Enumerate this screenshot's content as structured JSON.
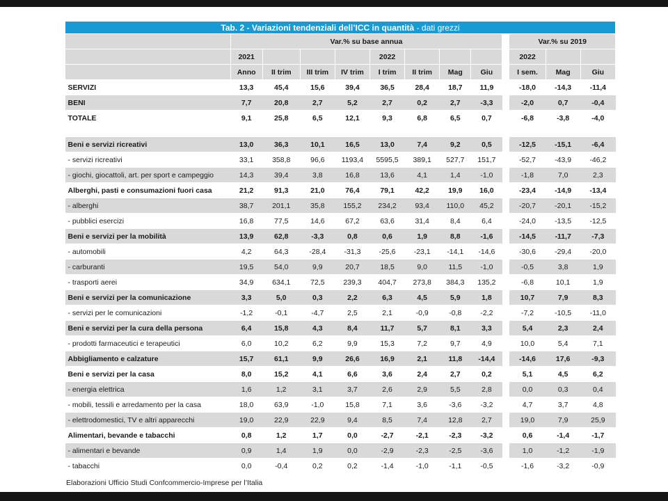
{
  "window": {
    "footer_note": "Elaborazioni Ufficio Studi Confcommercio-Imprese per l’Italia"
  },
  "table": {
    "title_bold": "Tab. 2 - Variazioni tendenziali dell’ICC in quantità",
    "title_rest": " - dati grezzi",
    "colors": {
      "title_bar": "#189bd5",
      "header_gray": "#d9d9d9",
      "stripe_gray": "#d9d9d9"
    },
    "header": {
      "group_left": "Var.% su base annua",
      "group_right": "Var.% su 2019",
      "year_2021": "2021",
      "year_2022_left": "2022",
      "year_2022_right": "2022",
      "cols_left": [
        "Anno",
        "II trim",
        "III trim",
        "IV trim",
        "I trim",
        "II trim",
        "Mag",
        "Giu"
      ],
      "cols_right": [
        "I sem.",
        "Mag",
        "Giu"
      ]
    },
    "rows": [
      {
        "label": "SERVIZI",
        "bold": true,
        "values": [
          "13,3",
          "45,4",
          "15,6",
          "39,4",
          "36,5",
          "28,4",
          "18,7",
          "11,9",
          "-18,0",
          "-14,3",
          "-11,4"
        ]
      },
      {
        "label": "BENI",
        "bold": true,
        "values": [
          "7,7",
          "20,8",
          "2,7",
          "5,2",
          "2,7",
          "0,2",
          "2,7",
          "-3,3",
          "-2,0",
          "0,7",
          "-0,4"
        ]
      },
      {
        "label": "TOTALE",
        "bold": true,
        "values": [
          "9,1",
          "25,8",
          "6,5",
          "12,1",
          "9,3",
          "6,8",
          "6,5",
          "0,7",
          "-6,8",
          "-3,8",
          "-4,0"
        ]
      },
      {
        "spacer": true
      },
      {
        "label": "Beni e servizi ricreativi",
        "bold": true,
        "values": [
          "13,0",
          "36,3",
          "10,1",
          "16,5",
          "13,0",
          "7,4",
          "9,2",
          "0,5",
          "-12,5",
          "-15,1",
          "-6,4"
        ]
      },
      {
        "label": "- servizi ricreativi",
        "bold": false,
        "values": [
          "33,1",
          "358,8",
          "96,6",
          "1193,4",
          "5595,5",
          "389,1",
          "527,7",
          "151,7",
          "-52,7",
          "-43,9",
          "-46,2"
        ]
      },
      {
        "label": "- giochi, giocattoli, art. per sport e campeggio",
        "bold": false,
        "values": [
          "14,3",
          "39,4",
          "3,8",
          "16,8",
          "13,6",
          "4,1",
          "1,4",
          "-1,0",
          "-1,8",
          "7,0",
          "2,3"
        ]
      },
      {
        "label": "Alberghi, pasti e consumazioni fuori casa",
        "bold": true,
        "values": [
          "21,2",
          "91,3",
          "21,0",
          "76,4",
          "79,1",
          "42,2",
          "19,9",
          "16,0",
          "-23,4",
          "-14,9",
          "-13,4"
        ]
      },
      {
        "label": "- alberghi",
        "bold": false,
        "values": [
          "38,7",
          "201,1",
          "35,8",
          "155,2",
          "234,2",
          "93,4",
          "110,0",
          "45,2",
          "-20,7",
          "-20,1",
          "-15,2"
        ]
      },
      {
        "label": "- pubblici esercizi",
        "bold": false,
        "values": [
          "16,8",
          "77,5",
          "14,6",
          "67,2",
          "63,6",
          "31,4",
          "8,4",
          "6,4",
          "-24,0",
          "-13,5",
          "-12,5"
        ]
      },
      {
        "label": "Beni e servizi per la mobilità",
        "bold": true,
        "values": [
          "13,9",
          "62,8",
          "-3,3",
          "0,8",
          "0,6",
          "1,9",
          "8,8",
          "-1,6",
          "-14,5",
          "-11,7",
          "-7,3"
        ]
      },
      {
        "label": "- automobili",
        "bold": false,
        "values": [
          "4,2",
          "64,3",
          "-28,4",
          "-31,3",
          "-25,6",
          "-23,1",
          "-14,1",
          "-14,6",
          "-30,6",
          "-29,4",
          "-20,0"
        ]
      },
      {
        "label": "- carburanti",
        "bold": false,
        "values": [
          "19,5",
          "54,0",
          "9,9",
          "20,7",
          "18,5",
          "9,0",
          "11,5",
          "-1,0",
          "-0,5",
          "3,8",
          "1,9"
        ]
      },
      {
        "label": "- trasporti aerei",
        "bold": false,
        "values": [
          "34,9",
          "634,1",
          "72,5",
          "239,3",
          "404,7",
          "273,8",
          "384,3",
          "135,2",
          "-6,8",
          "10,1",
          "1,9"
        ]
      },
      {
        "label": "Beni e servizi per la comunicazione",
        "bold": true,
        "values": [
          "3,3",
          "5,0",
          "0,3",
          "2,2",
          "6,3",
          "4,5",
          "5,9",
          "1,8",
          "10,7",
          "7,9",
          "8,3"
        ]
      },
      {
        "label": "- servizi per le comunicazioni",
        "bold": false,
        "values": [
          "-1,2",
          "-0,1",
          "-4,7",
          "2,5",
          "2,1",
          "-0,9",
          "-0,8",
          "-2,2",
          "-7,2",
          "-10,5",
          "-11,0"
        ]
      },
      {
        "label": "Beni e servizi per la cura della persona",
        "bold": true,
        "values": [
          "6,4",
          "15,8",
          "4,3",
          "8,4",
          "11,7",
          "5,7",
          "8,1",
          "3,3",
          "5,4",
          "2,3",
          "2,4"
        ]
      },
      {
        "label": "- prodotti farmaceutici e terapeutici",
        "bold": false,
        "values": [
          "6,0",
          "10,2",
          "6,2",
          "9,9",
          "15,3",
          "7,2",
          "9,7",
          "4,9",
          "10,0",
          "5,4",
          "7,1"
        ]
      },
      {
        "label": "Abbigliamento e calzature",
        "bold": true,
        "values": [
          "15,7",
          "61,1",
          "9,9",
          "26,6",
          "16,9",
          "2,1",
          "11,8",
          "-14,4",
          "-14,6",
          "17,6",
          "-9,3"
        ]
      },
      {
        "label": "Beni e servizi per la casa",
        "bold": true,
        "values": [
          "8,0",
          "15,2",
          "4,1",
          "6,6",
          "3,6",
          "2,4",
          "2,7",
          "0,2",
          "5,1",
          "4,5",
          "6,2"
        ]
      },
      {
        "label": "- energia elettrica",
        "bold": false,
        "values": [
          "1,6",
          "1,2",
          "3,1",
          "3,7",
          "2,6",
          "2,9",
          "5,5",
          "2,8",
          "0,0",
          "0,3",
          "0,4"
        ]
      },
      {
        "label": "- mobili, tessili e arredamento per la casa",
        "bold": false,
        "values": [
          "18,0",
          "63,9",
          "-1,0",
          "15,8",
          "7,1",
          "3,6",
          "-3,6",
          "-3,2",
          "4,7",
          "3,7",
          "4,8"
        ]
      },
      {
        "label": "- elettrodomestici, TV e altri apparecchi",
        "bold": false,
        "values": [
          "19,0",
          "22,9",
          "22,9",
          "9,4",
          "8,5",
          "7,4",
          "12,8",
          "2,7",
          "19,0",
          "7,9",
          "25,9"
        ]
      },
      {
        "label": "Alimentari, bevande e tabacchi",
        "bold": true,
        "values": [
          "0,8",
          "1,2",
          "1,7",
          "0,0",
          "-2,7",
          "-2,1",
          "-2,3",
          "-3,2",
          "0,6",
          "-1,4",
          "-1,7"
        ]
      },
      {
        "label": "- alimentari e bevande",
        "bold": false,
        "values": [
          "0,9",
          "1,4",
          "1,9",
          "0,0",
          "-2,9",
          "-2,3",
          "-2,5",
          "-3,6",
          "1,0",
          "-1,2",
          "-1,9"
        ]
      },
      {
        "label": "- tabacchi",
        "bold": false,
        "values": [
          "0,0",
          "-0,4",
          "0,2",
          "0,2",
          "-1,4",
          "-1,0",
          "-1,1",
          "-0,5",
          "-1,6",
          "-3,2",
          "-0,9"
        ]
      }
    ]
  }
}
